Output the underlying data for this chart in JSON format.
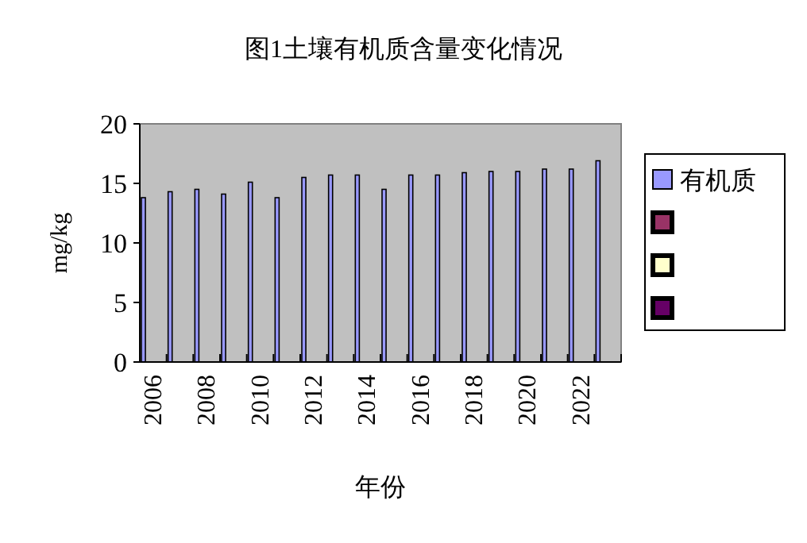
{
  "chart_data": {
    "type": "bar",
    "title": "图1土壤有机质含量变化情况",
    "xlabel": "年份",
    "ylabel": "mg/kg",
    "categories": [
      "2006",
      null,
      "2008",
      null,
      "2010",
      null,
      "2012",
      null,
      "2014",
      null,
      "2016",
      null,
      "2018",
      null,
      "2020",
      null,
      "2022",
      null
    ],
    "series": [
      {
        "name": "有机质",
        "color": "#9999ff",
        "values": [
          13.8,
          14.3,
          14.5,
          14.1,
          15.1,
          13.8,
          15.5,
          15.7,
          15.7,
          14.5,
          15.7,
          15.7,
          15.9,
          16.0,
          16.0,
          16.2,
          16.2,
          16.9
        ]
      },
      {
        "color": "#993366",
        "values": [
          null,
          null,
          null,
          null,
          null,
          null,
          null,
          null,
          null,
          null,
          null,
          null,
          null,
          null,
          null,
          null,
          null,
          null
        ]
      },
      {
        "color": "#ffffcc",
        "values": [
          null,
          null,
          null,
          null,
          null,
          null,
          null,
          null,
          null,
          null,
          null,
          null,
          null,
          null,
          null,
          null,
          null,
          null
        ]
      },
      {
        "color": "#660066",
        "values": [
          null,
          null,
          null,
          null,
          null,
          null,
          null,
          null,
          null,
          null,
          null,
          null,
          null,
          null,
          null,
          null,
          null,
          null
        ]
      }
    ],
    "ylim": [
      0,
      20
    ],
    "yticks": [
      0,
      5,
      10,
      15,
      20
    ],
    "grid": false,
    "legend": "right"
  }
}
